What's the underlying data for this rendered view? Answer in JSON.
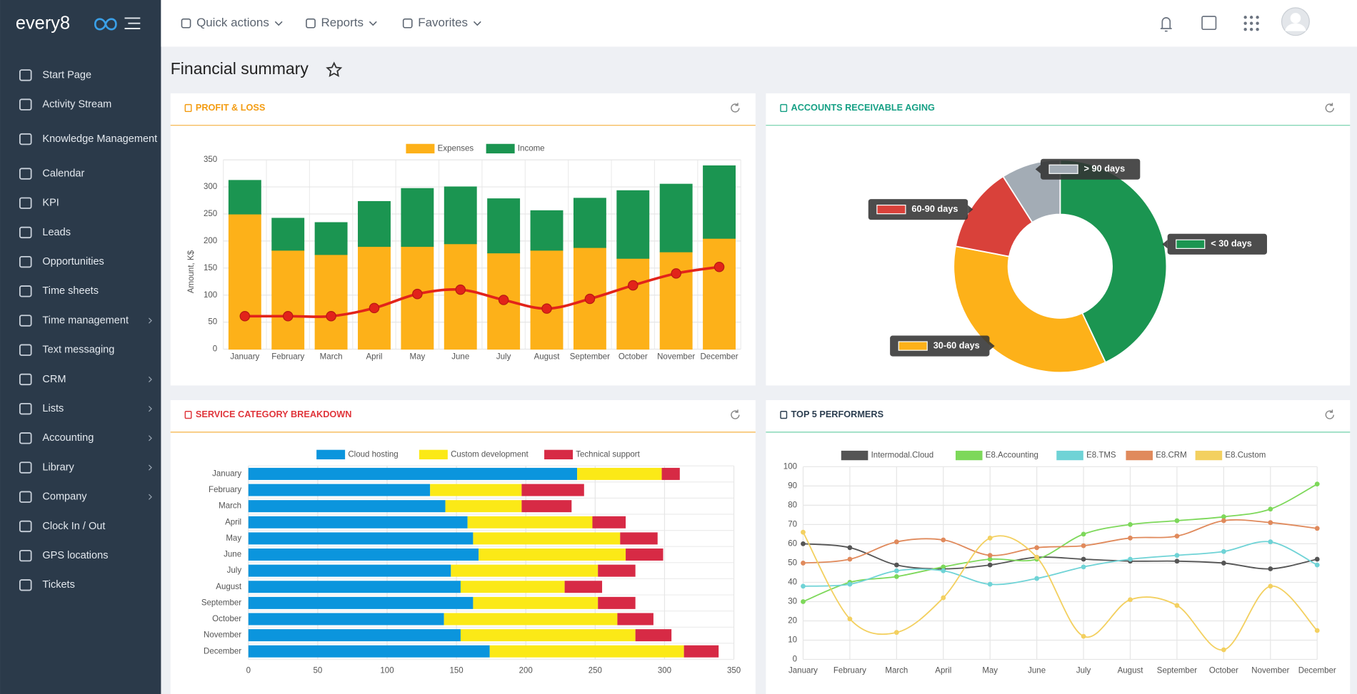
{
  "sidebar": {
    "logo": "every8",
    "menu": [
      {
        "label": "Start Page"
      },
      {
        "label": "Activity Stream"
      },
      {
        "label": "Knowledge Management"
      },
      {
        "label": "Calendar"
      },
      {
        "label": "KPI"
      },
      {
        "label": "Leads"
      },
      {
        "label": "Opportunities"
      },
      {
        "label": "Time sheets"
      },
      {
        "label": "Time management",
        "submenu": true
      },
      {
        "label": "Text messaging"
      },
      {
        "label": "CRM",
        "submenu": true
      },
      {
        "label": "Lists",
        "submenu": true
      },
      {
        "label": "Accounting",
        "submenu": true
      },
      {
        "label": "Library",
        "submenu": true
      },
      {
        "label": "Company",
        "submenu": true
      },
      {
        "label": "Clock In / Out"
      },
      {
        "label": "GPS locations"
      },
      {
        "label": "Tickets"
      }
    ]
  },
  "topbar": {
    "menu": [
      "Quick actions",
      "Reports",
      "Favorites"
    ]
  },
  "page_title": "Financial summary",
  "chart_data": [
    {
      "type": "bar",
      "title": "PROFIT & LOSS",
      "stacked": true,
      "categories": [
        "January",
        "February",
        "March",
        "April",
        "May",
        "June",
        "July",
        "August",
        "September",
        "October",
        "November",
        "December"
      ],
      "series": [
        {
          "name": "Expenses",
          "color": "#fdb119",
          "values": [
            250,
            183,
            175,
            190,
            190,
            195,
            178,
            183,
            188,
            168,
            180,
            205
          ]
        },
        {
          "name": "Income",
          "color": "#1b9551",
          "values": [
            62,
            59,
            59,
            83,
            107,
            105,
            100,
            73,
            91,
            125,
            125,
            134
          ]
        },
        {
          "type": "line",
          "color": "#e2231a",
          "values": [
            61,
            61,
            61,
            76,
            102,
            110,
            91,
            75,
            93,
            118,
            140,
            152
          ]
        }
      ],
      "ylabel": "Amount, K$",
      "ylim": [
        0,
        350
      ],
      "yticks": [
        0,
        50,
        100,
        150,
        200,
        250,
        300,
        350
      ],
      "grid": true
    },
    {
      "type": "doughnut",
      "title": "ACCOUNTS RECEIVABLE AGING",
      "categories": [
        "< 30 days",
        "30-60 days",
        "60-90 days",
        "> 90 days"
      ],
      "values": [
        43,
        35,
        13,
        9
      ],
      "colors": [
        "#1b9551",
        "#fdb119",
        "#d9413a",
        "#a3acb5"
      ]
    },
    {
      "type": "bar",
      "title": "SERVICE CATEGORY BREAKDOWN",
      "stacked": true,
      "horizontal": true,
      "categories": [
        "January",
        "February",
        "March",
        "April",
        "May",
        "June",
        "July",
        "August",
        "September",
        "October",
        "November",
        "December"
      ],
      "series": [
        {
          "name": "Cloud hosting",
          "color": "#0b95dd",
          "values": [
            237,
            131,
            142,
            158,
            162,
            166,
            146,
            153,
            162,
            141,
            153,
            174
          ]
        },
        {
          "name": "Custom development",
          "color": "#fbe917",
          "values": [
            61,
            66,
            55,
            90,
            106,
            106,
            106,
            75,
            90,
            125,
            126,
            140
          ]
        },
        {
          "name": "Technical support",
          "color": "#d72a45",
          "values": [
            13,
            45,
            36,
            24,
            27,
            27,
            27,
            27,
            27,
            26,
            26,
            25
          ]
        }
      ],
      "xlim": [
        0,
        350
      ],
      "xticks": [
        0,
        50,
        100,
        150,
        200,
        250,
        300,
        350
      ],
      "grid": true
    },
    {
      "type": "line",
      "title": "TOP 5 PERFORMERS",
      "smooth": true,
      "categories": [
        "January",
        "February",
        "March",
        "April",
        "May",
        "June",
        "July",
        "August",
        "September",
        "October",
        "November",
        "December"
      ],
      "series": [
        {
          "name": "Intermodal.Cloud",
          "color": "#555555",
          "values": [
            60,
            58,
            49,
            47,
            49,
            53,
            52,
            51,
            51,
            50,
            47,
            52
          ]
        },
        {
          "name": "E8.Accounting",
          "color": "#7dd85a",
          "values": [
            30,
            40,
            43,
            48,
            52,
            52,
            65,
            70,
            72,
            74,
            78,
            91
          ]
        },
        {
          "name": "E8.TMS",
          "color": "#6fd3d6",
          "values": [
            38,
            39,
            46,
            46,
            39,
            42,
            48,
            52,
            54,
            56,
            61,
            49
          ]
        },
        {
          "name": "E8.CRM",
          "color": "#e08a5c",
          "values": [
            50,
            52,
            61,
            62,
            54,
            58,
            59,
            63,
            64,
            72,
            71,
            68
          ]
        },
        {
          "name": "E8.Custom",
          "color": "#f3d060",
          "values": [
            66,
            21,
            14,
            32,
            63,
            53,
            12,
            31,
            28,
            5,
            38,
            15
          ]
        }
      ],
      "ylim": [
        0,
        100
      ],
      "yticks": [
        0,
        10,
        20,
        30,
        40,
        50,
        60,
        70,
        80,
        90,
        100
      ],
      "grid": true
    }
  ]
}
